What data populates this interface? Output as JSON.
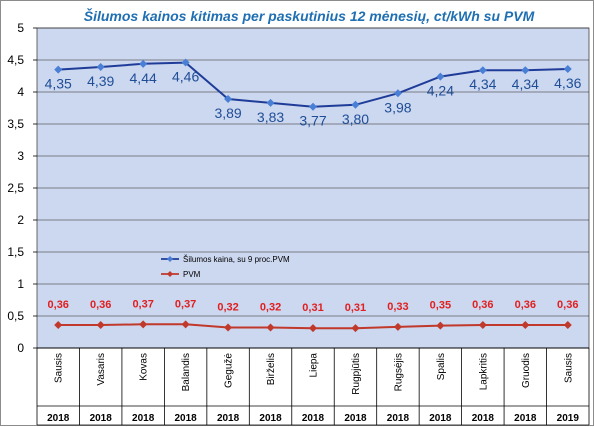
{
  "chart_data": {
    "type": "line",
    "title": "Šilumos kainos kitimas per paskutinius 12 mėnesių, ct/kWh su PVM",
    "categories": [
      "Sausis",
      "Vasaris",
      "Kovas",
      "Balandis",
      "Gegužė",
      "Birželis",
      "Liepa",
      "Rugpjūtis",
      "Rugsėjis",
      "Spalis",
      "Lapkritis",
      "Gruodis",
      "Sausis"
    ],
    "years": [
      "2018",
      "2018",
      "2018",
      "2018",
      "2018",
      "2018",
      "2018",
      "2018",
      "2018",
      "2018",
      "2018",
      "2018",
      "2019"
    ],
    "yticks": [
      "0",
      "0,5",
      "1",
      "1,5",
      "2",
      "2,5",
      "3",
      "3,5",
      "4",
      "4,5",
      "5"
    ],
    "ylim": [
      0,
      5
    ],
    "grid": true,
    "legend_position": "center-left",
    "series": [
      {
        "name": "Šilumos kaina, su 9 proc.PVM",
        "color": "#1f3c99",
        "values": [
          4.35,
          4.39,
          4.44,
          4.46,
          3.89,
          3.83,
          3.77,
          3.8,
          3.98,
          4.24,
          4.34,
          4.34,
          4.36
        ],
        "labels": [
          "4,35",
          "4,39",
          "4,44",
          "4,46",
          "3,89",
          "3,83",
          "3,77",
          "3,80",
          "3,98",
          "4,24",
          "4,34",
          "4,34",
          "4,36"
        ]
      },
      {
        "name": "PVM",
        "color": "#c0392b",
        "values": [
          0.36,
          0.36,
          0.37,
          0.37,
          0.32,
          0.32,
          0.31,
          0.31,
          0.33,
          0.35,
          0.36,
          0.36,
          0.36
        ],
        "labels": [
          "0,36",
          "0,36",
          "0,37",
          "0,37",
          "0,32",
          "0,32",
          "0,31",
          "0,31",
          "0,33",
          "0,35",
          "0,36",
          "0,36",
          "0,36"
        ]
      }
    ]
  },
  "style": {
    "plot_background": "#ccd7f0",
    "gridline_color": "#222222",
    "heat_label_color": "#1f4e96",
    "vat_label_color": "#e02020"
  }
}
